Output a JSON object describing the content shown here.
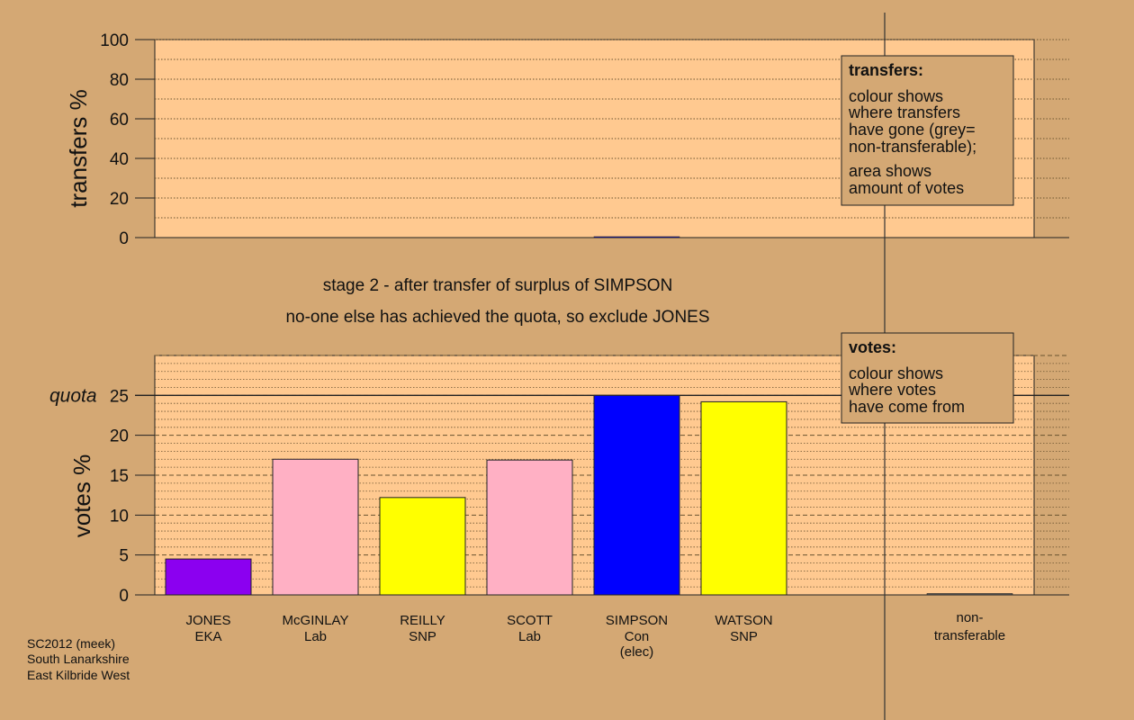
{
  "captions": {
    "line1": "stage 2 - after transfer of surplus of SIMPSON",
    "line2": "no-one else has achieved the quota, so exclude JONES"
  },
  "credit": [
    "SC2012 (meek)",
    "South Lanarkshire",
    "East Kilbride West"
  ],
  "legend_transfers": {
    "title": "transfers:",
    "lines": [
      "colour shows",
      "where transfers",
      "have gone (grey=",
      "non-transferable);",
      "area shows",
      "amount of votes"
    ]
  },
  "legend_votes": {
    "title": "votes:",
    "lines": [
      "colour shows",
      "where votes",
      "have come from"
    ]
  },
  "colors": {
    "background": "#d4a874",
    "panel": "#ffc990",
    "EKA": "#8b00f0",
    "Lab": "#ffb0c4",
    "SNP": "#ffff00",
    "Con": "#0000ff",
    "nontransferable": "#555555"
  },
  "chart_data": [
    {
      "type": "bar",
      "ylabel": "transfers %",
      "ylim": [
        0,
        100
      ],
      "yticks": [
        0,
        20,
        40,
        60,
        80,
        100
      ],
      "categories": [
        "JONES",
        "McGINLAY",
        "REILLY",
        "SCOTT",
        "SIMPSON",
        "WATSON",
        "non-transferable"
      ],
      "values": [
        0,
        0,
        0,
        0,
        0.3,
        0,
        0
      ]
    },
    {
      "type": "bar",
      "ylabel": "votes %",
      "ylim": [
        0,
        30
      ],
      "yticks": [
        0,
        5,
        10,
        15,
        20,
        25
      ],
      "quota": {
        "label": "quota",
        "value": 25
      },
      "categories": [
        {
          "name": "JONES",
          "party": "EKA",
          "note": "",
          "value": 4.5
        },
        {
          "name": "McGINLAY",
          "party": "Lab",
          "note": "",
          "value": 17.0
        },
        {
          "name": "REILLY",
          "party": "SNP",
          "note": "",
          "value": 12.2
        },
        {
          "name": "SCOTT",
          "party": "Lab",
          "note": "",
          "value": 16.9
        },
        {
          "name": "SIMPSON",
          "party": "Con",
          "note": "(elec)",
          "value": 25.0
        },
        {
          "name": "WATSON",
          "party": "SNP",
          "note": "",
          "value": 24.2
        }
      ],
      "nontransferable": {
        "line1": "non-",
        "line2": "transferable",
        "value": 0.15
      }
    }
  ]
}
